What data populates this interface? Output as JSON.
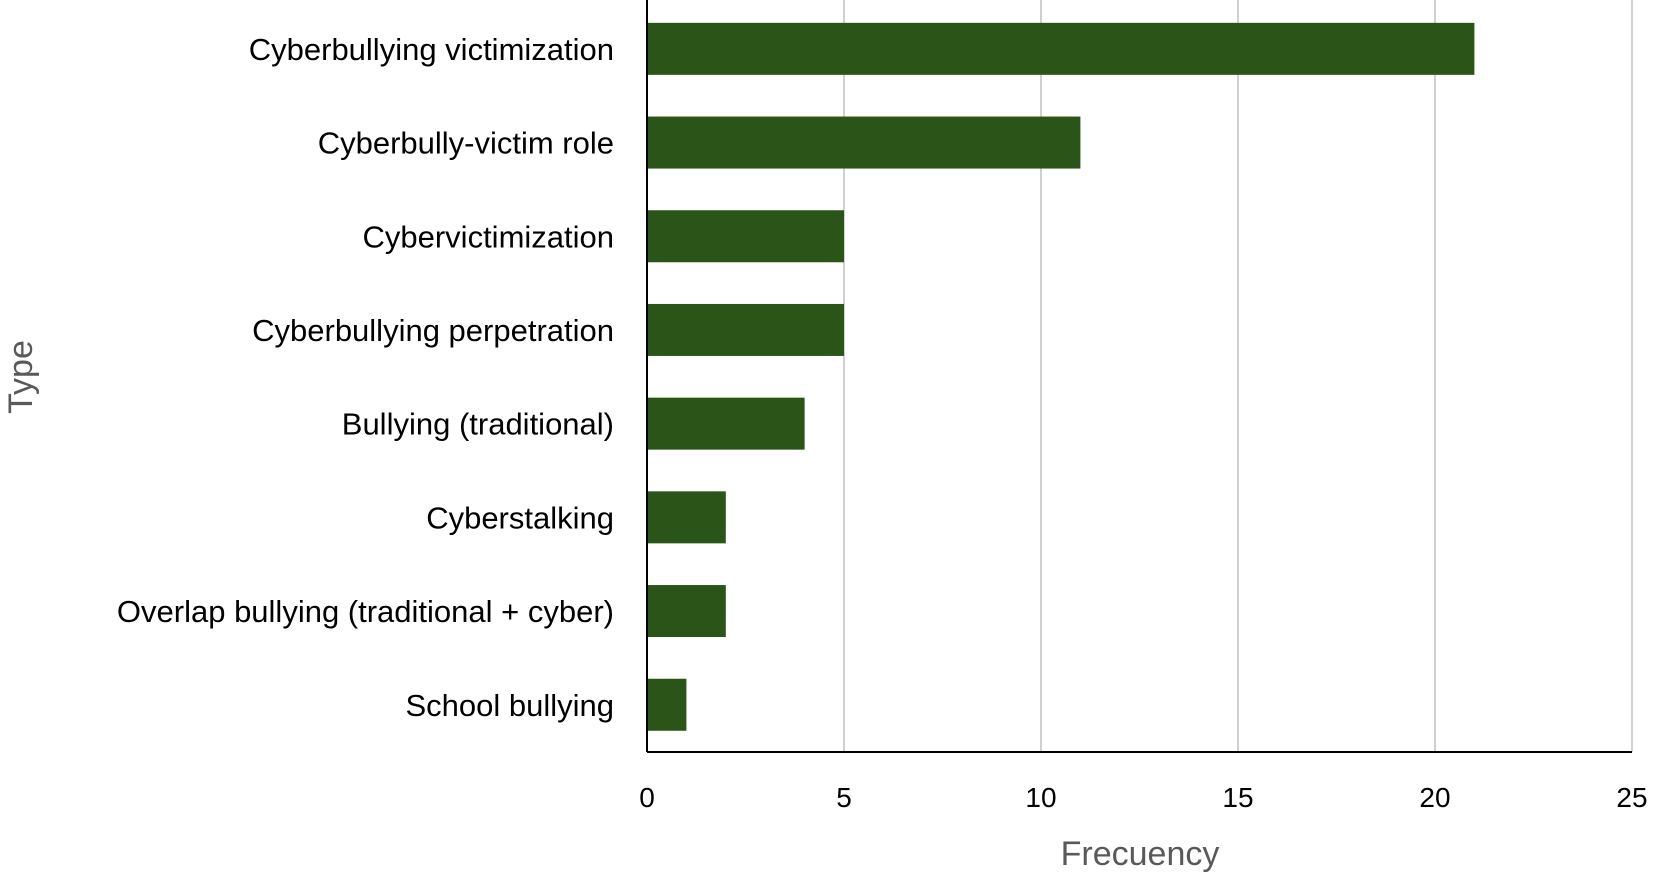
{
  "chart_data": {
    "type": "bar",
    "orientation": "horizontal",
    "categories": [
      "Cyberbullying victimization",
      "Cyberbully-victim role",
      "Cybervictimization",
      "Cyberbullying perpetration",
      "Bullying (traditional)",
      "Cyberstalking",
      "Overlap bullying (traditional + cyber)",
      "School bullying"
    ],
    "values": [
      21,
      11,
      5,
      5,
      4,
      2,
      2,
      1
    ],
    "title": "",
    "xlabel": "Frecuency",
    "ylabel": "Type",
    "xlim": [
      0,
      25
    ],
    "xticks": [
      0,
      5,
      10,
      15,
      20,
      25
    ],
    "xtick_labels": [
      "0",
      "5",
      "10",
      "15",
      "20",
      "25"
    ],
    "grid": "vertical",
    "legend": "none",
    "bar_color": "#2a5418",
    "grid_color": "#d0d0d0"
  }
}
